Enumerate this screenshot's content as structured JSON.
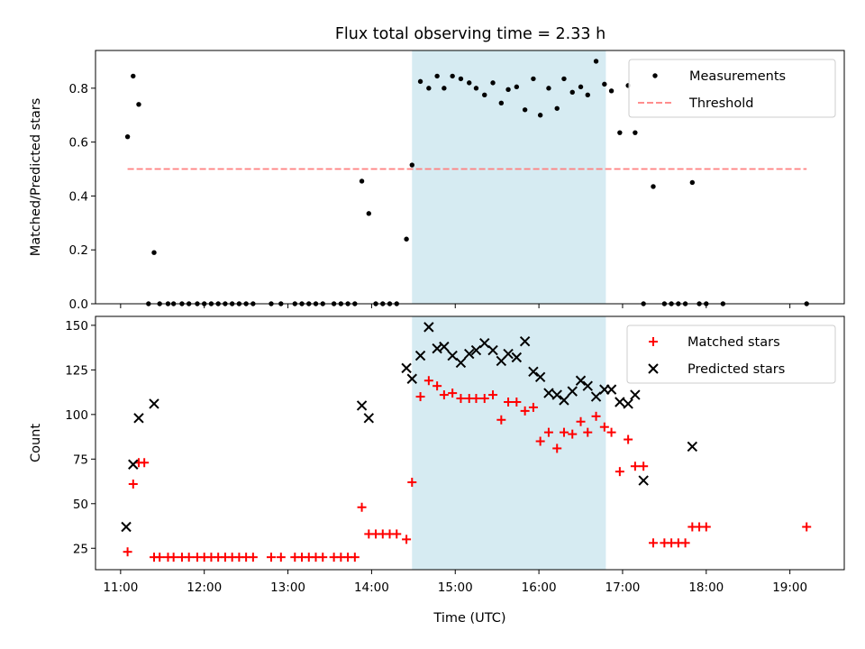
{
  "title": "Flux total observing time = 2.33 h",
  "chart_data": [
    {
      "type": "scatter",
      "title": "Flux total observing time = 2.33 h",
      "xlabel": "",
      "ylabel": "Matched/Predicted stars",
      "xlim": [
        "10:42",
        "19:39"
      ],
      "ylim": [
        0,
        0.94
      ],
      "yticks": [
        "0.0",
        "0.2",
        "0.4",
        "0.6",
        "0.8"
      ],
      "highlight_span": [
        "14:29",
        "16:48"
      ],
      "highlight_color": "#add8e6",
      "legend_position": "upper right",
      "series": [
        {
          "name": "Measurements",
          "marker": "dot",
          "color": "#000000",
          "points": [
            [
              "11:05",
              0.62
            ],
            [
              "11:09",
              0.845
            ],
            [
              "11:13",
              0.74
            ],
            [
              "11:24",
              0.19
            ],
            [
              "11:20",
              0.0
            ],
            [
              "11:28",
              0.0
            ],
            [
              "11:34",
              0.0
            ],
            [
              "11:38",
              0.0
            ],
            [
              "11:44",
              0.0
            ],
            [
              "11:49",
              0.0
            ],
            [
              "11:55",
              0.0
            ],
            [
              "12:00",
              0.0
            ],
            [
              "12:05",
              0.0
            ],
            [
              "12:10",
              0.0
            ],
            [
              "12:15",
              0.0
            ],
            [
              "12:20",
              0.0
            ],
            [
              "12:25",
              0.0
            ],
            [
              "12:30",
              0.0
            ],
            [
              "12:35",
              0.0
            ],
            [
              "12:48",
              0.0
            ],
            [
              "12:55",
              0.0
            ],
            [
              "13:05",
              0.0
            ],
            [
              "13:10",
              0.0
            ],
            [
              "13:15",
              0.0
            ],
            [
              "13:20",
              0.0
            ],
            [
              "13:25",
              0.0
            ],
            [
              "13:33",
              0.0
            ],
            [
              "13:38",
              0.0
            ],
            [
              "13:43",
              0.0
            ],
            [
              "13:48",
              0.0
            ],
            [
              "13:53",
              0.455
            ],
            [
              "13:58",
              0.335
            ],
            [
              "14:03",
              0.0
            ],
            [
              "14:08",
              0.0
            ],
            [
              "14:13",
              0.0
            ],
            [
              "14:18",
              0.0
            ],
            [
              "14:25",
              0.24
            ],
            [
              "14:29",
              0.515
            ],
            [
              "14:35",
              0.825
            ],
            [
              "14:41",
              0.8
            ],
            [
              "14:47",
              0.845
            ],
            [
              "14:52",
              0.8
            ],
            [
              "14:58",
              0.845
            ],
            [
              "15:04",
              0.835
            ],
            [
              "15:10",
              0.82
            ],
            [
              "15:15",
              0.8
            ],
            [
              "15:21",
              0.775
            ],
            [
              "15:27",
              0.82
            ],
            [
              "15:33",
              0.745
            ],
            [
              "15:38",
              0.795
            ],
            [
              "15:44",
              0.805
            ],
            [
              "15:50",
              0.72
            ],
            [
              "15:56",
              0.835
            ],
            [
              "16:01",
              0.7
            ],
            [
              "16:07",
              0.8
            ],
            [
              "16:13",
              0.725
            ],
            [
              "16:18",
              0.835
            ],
            [
              "16:24",
              0.785
            ],
            [
              "16:30",
              0.805
            ],
            [
              "16:35",
              0.775
            ],
            [
              "16:41",
              0.9
            ],
            [
              "16:47",
              0.815
            ],
            [
              "16:52",
              0.79
            ],
            [
              "16:58",
              0.635
            ],
            [
              "17:04",
              0.81
            ],
            [
              "17:09",
              0.635
            ],
            [
              "17:15",
              0.0
            ],
            [
              "17:22",
              0.435
            ],
            [
              "17:30",
              0.0
            ],
            [
              "17:35",
              0.0
            ],
            [
              "17:40",
              0.0
            ],
            [
              "17:45",
              0.0
            ],
            [
              "17:50",
              0.45
            ],
            [
              "17:55",
              0.0
            ],
            [
              "18:00",
              0.0
            ],
            [
              "18:12",
              0.0
            ],
            [
              "19:12",
              0.0
            ]
          ]
        },
        {
          "name": "Threshold",
          "line_style": "dashed",
          "color": "#ff7f7f",
          "points": [
            [
              "11:05",
              0.5
            ],
            [
              "19:12",
              0.5
            ]
          ]
        }
      ]
    },
    {
      "type": "scatter",
      "xlabel": "Time (UTC)",
      "ylabel": "Count",
      "xlim": [
        "10:42",
        "19:39"
      ],
      "ylim": [
        13,
        155
      ],
      "xticks": [
        "11:00",
        "12:00",
        "13:00",
        "14:00",
        "15:00",
        "16:00",
        "17:00",
        "18:00",
        "19:00"
      ],
      "yticks": [
        "25",
        "50",
        "75",
        "100",
        "125",
        "150"
      ],
      "highlight_span": [
        "14:29",
        "16:48"
      ],
      "highlight_color": "#add8e6",
      "legend_position": "upper right",
      "series": [
        {
          "name": "Matched stars",
          "marker": "plus",
          "color": "#ff0000",
          "points": [
            [
              "11:05",
              23
            ],
            [
              "11:09",
              61
            ],
            [
              "11:13",
              73
            ],
            [
              "11:17",
              73
            ],
            [
              "11:24",
              20
            ],
            [
              "11:28",
              20
            ],
            [
              "11:34",
              20
            ],
            [
              "11:38",
              20
            ],
            [
              "11:44",
              20
            ],
            [
              "11:49",
              20
            ],
            [
              "11:55",
              20
            ],
            [
              "12:00",
              20
            ],
            [
              "12:05",
              20
            ],
            [
              "12:10",
              20
            ],
            [
              "12:15",
              20
            ],
            [
              "12:20",
              20
            ],
            [
              "12:25",
              20
            ],
            [
              "12:30",
              20
            ],
            [
              "12:35",
              20
            ],
            [
              "12:48",
              20
            ],
            [
              "12:55",
              20
            ],
            [
              "13:05",
              20
            ],
            [
              "13:10",
              20
            ],
            [
              "13:15",
              20
            ],
            [
              "13:20",
              20
            ],
            [
              "13:25",
              20
            ],
            [
              "13:33",
              20
            ],
            [
              "13:38",
              20
            ],
            [
              "13:43",
              20
            ],
            [
              "13:48",
              20
            ],
            [
              "13:53",
              48
            ],
            [
              "13:58",
              33
            ],
            [
              "14:03",
              33
            ],
            [
              "14:08",
              33
            ],
            [
              "14:13",
              33
            ],
            [
              "14:18",
              33
            ],
            [
              "14:25",
              30
            ],
            [
              "14:29",
              62
            ],
            [
              "14:35",
              110
            ],
            [
              "14:41",
              119
            ],
            [
              "14:47",
              116
            ],
            [
              "14:52",
              111
            ],
            [
              "14:58",
              112
            ],
            [
              "15:04",
              109
            ],
            [
              "15:10",
              109
            ],
            [
              "15:15",
              109
            ],
            [
              "15:21",
              109
            ],
            [
              "15:27",
              111
            ],
            [
              "15:33",
              97
            ],
            [
              "15:38",
              107
            ],
            [
              "15:44",
              107
            ],
            [
              "15:50",
              102
            ],
            [
              "15:56",
              104
            ],
            [
              "16:01",
              85
            ],
            [
              "16:07",
              90
            ],
            [
              "16:13",
              81
            ],
            [
              "16:18",
              90
            ],
            [
              "16:24",
              89
            ],
            [
              "16:30",
              96
            ],
            [
              "16:35",
              90
            ],
            [
              "16:41",
              99
            ],
            [
              "16:47",
              93
            ],
            [
              "16:52",
              90
            ],
            [
              "16:58",
              68
            ],
            [
              "17:04",
              86
            ],
            [
              "17:09",
              71
            ],
            [
              "17:15",
              71
            ],
            [
              "17:22",
              28
            ],
            [
              "17:30",
              28
            ],
            [
              "17:35",
              28
            ],
            [
              "17:40",
              28
            ],
            [
              "17:45",
              28
            ],
            [
              "17:50",
              37
            ],
            [
              "17:55",
              37
            ],
            [
              "18:00",
              37
            ],
            [
              "19:12",
              37
            ]
          ]
        },
        {
          "name": "Predicted stars",
          "marker": "x",
          "color": "#000000",
          "points": [
            [
              "11:04",
              37
            ],
            [
              "11:09",
              72
            ],
            [
              "11:13",
              98
            ],
            [
              "11:24",
              106
            ],
            [
              "13:53",
              105
            ],
            [
              "13:58",
              98
            ],
            [
              "14:25",
              126
            ],
            [
              "14:29",
              120
            ],
            [
              "14:35",
              133
            ],
            [
              "14:41",
              149
            ],
            [
              "14:47",
              137
            ],
            [
              "14:52",
              138
            ],
            [
              "14:58",
              133
            ],
            [
              "15:04",
              129
            ],
            [
              "15:10",
              134
            ],
            [
              "15:15",
              136
            ],
            [
              "15:21",
              140
            ],
            [
              "15:27",
              136
            ],
            [
              "15:33",
              130
            ],
            [
              "15:38",
              134
            ],
            [
              "15:44",
              132
            ],
            [
              "15:50",
              141
            ],
            [
              "15:56",
              124
            ],
            [
              "16:01",
              121
            ],
            [
              "16:07",
              112
            ],
            [
              "16:13",
              111
            ],
            [
              "16:18",
              108
            ],
            [
              "16:24",
              113
            ],
            [
              "16:30",
              119
            ],
            [
              "16:35",
              116
            ],
            [
              "16:41",
              110
            ],
            [
              "16:47",
              114
            ],
            [
              "16:52",
              114
            ],
            [
              "16:58",
              107
            ],
            [
              "17:04",
              106
            ],
            [
              "17:09",
              111
            ],
            [
              "17:15",
              63
            ],
            [
              "17:50",
              82
            ]
          ]
        }
      ]
    }
  ]
}
